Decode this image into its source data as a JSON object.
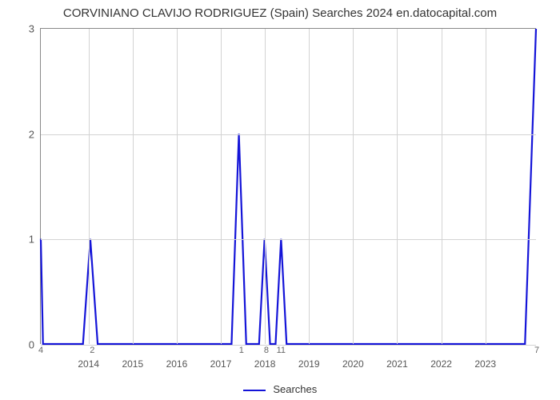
{
  "chart": {
    "type": "line",
    "title": "CORVINIANO CLAVIJO RODRIGUEZ (Spain) Searches 2024 en.datocapital.com",
    "title_fontsize": 15,
    "background_color": "#ffffff",
    "grid_color": "#d3d3d3",
    "axis_color": "#888888",
    "line_color": "#1414d8",
    "line_width": 2.2,
    "y": {
      "min": 0,
      "max": 3,
      "ticks": [
        0,
        1,
        2,
        3
      ]
    },
    "x": {
      "year_ticks": [
        2014,
        2015,
        2016,
        2017,
        2018,
        2019,
        2020,
        2021,
        2022,
        2023
      ],
      "t_min": 24156,
      "t_max": 24291
    },
    "legend": {
      "label": "Searches"
    },
    "data_labels": [
      {
        "t": 24156.0,
        "y": 0,
        "text": "4"
      },
      {
        "t": 24170.0,
        "y": 0,
        "text": "2"
      },
      {
        "t": 24210.6,
        "y": 0,
        "text": "1"
      },
      {
        "t": 24217.4,
        "y": 0,
        "text": "8"
      },
      {
        "t": 24221.4,
        "y": 0,
        "text": "11"
      },
      {
        "t": 24291.0,
        "y": 0,
        "text": "7"
      }
    ],
    "points": [
      {
        "t": 24156.0,
        "y": 1.0
      },
      {
        "t": 24156.6,
        "y": 0.0
      },
      {
        "t": 24167.5,
        "y": 0.0
      },
      {
        "t": 24169.5,
        "y": 1.0
      },
      {
        "t": 24171.5,
        "y": 0.0
      },
      {
        "t": 24208.0,
        "y": 0.0
      },
      {
        "t": 24210.0,
        "y": 2.0
      },
      {
        "t": 24212.0,
        "y": 0.0
      },
      {
        "t": 24215.5,
        "y": 0.0
      },
      {
        "t": 24217.0,
        "y": 1.0
      },
      {
        "t": 24218.5,
        "y": 0.0
      },
      {
        "t": 24220.0,
        "y": 0.0
      },
      {
        "t": 24221.5,
        "y": 1.0
      },
      {
        "t": 24223.0,
        "y": 0.0
      },
      {
        "t": 24288.0,
        "y": 0.0
      },
      {
        "t": 24291.0,
        "y": 3.0
      }
    ]
  }
}
